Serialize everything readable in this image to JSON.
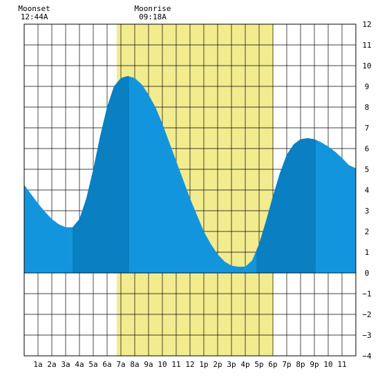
{
  "chart_data": {
    "type": "area",
    "title": "",
    "xlabel": "",
    "ylabel": "",
    "xlim": [
      0,
      24
    ],
    "ylim": [
      -4,
      12
    ],
    "yticks": [
      -4,
      -3,
      -2,
      -1,
      0,
      1,
      2,
      3,
      4,
      5,
      6,
      7,
      8,
      9,
      10,
      11,
      12
    ],
    "xtick_labels": [
      {
        "x": 1,
        "label": "1a"
      },
      {
        "x": 2,
        "label": "2a"
      },
      {
        "x": 3,
        "label": "3a"
      },
      {
        "x": 4,
        "label": "4a"
      },
      {
        "x": 5,
        "label": "5a"
      },
      {
        "x": 6,
        "label": "6a"
      },
      {
        "x": 7,
        "label": "7a"
      },
      {
        "x": 8,
        "label": "8a"
      },
      {
        "x": 9,
        "label": "9a"
      },
      {
        "x": 10,
        "label": "10"
      },
      {
        "x": 11,
        "label": "11"
      },
      {
        "x": 12,
        "label": "12"
      },
      {
        "x": 13,
        "label": "1p"
      },
      {
        "x": 14,
        "label": "2p"
      },
      {
        "x": 15,
        "label": "3p"
      },
      {
        "x": 16,
        "label": "4p"
      },
      {
        "x": 17,
        "label": "5p"
      },
      {
        "x": 18,
        "label": "6p"
      },
      {
        "x": 19,
        "label": "7p"
      },
      {
        "x": 20,
        "label": "8p"
      },
      {
        "x": 21,
        "label": "9p"
      },
      {
        "x": 22,
        "label": "10"
      },
      {
        "x": 23,
        "label": "11"
      }
    ],
    "daylight": {
      "start": 6.7,
      "end": 18.0
    },
    "annotations": [
      {
        "title": "Moonset",
        "time": "12:44A",
        "x": 0.73
      },
      {
        "title": "Moonrise",
        "time": "09:18A",
        "x": 9.3
      }
    ],
    "tide_extremes": [
      {
        "x": 3.5,
        "y": 2.2
      },
      {
        "x": 7.6,
        "y": 9.5
      },
      {
        "x": 16.8,
        "y": 0.3
      },
      {
        "x": 21.1,
        "y": 6.5
      }
    ],
    "series": [
      {
        "x": [
          0,
          0.5,
          1,
          1.5,
          2,
          2.5,
          3,
          3.5,
          4,
          4.5,
          5,
          5.5,
          6,
          6.5,
          7,
          7.5,
          8,
          8.5,
          9,
          9.5,
          10,
          10.5,
          11,
          11.5,
          12,
          12.5,
          13,
          13.5,
          14,
          14.5,
          15,
          15.5,
          16,
          16.5,
          17,
          17.5,
          18,
          18.5,
          19,
          19.5,
          20,
          20.5,
          21,
          21.5,
          22,
          22.5,
          23,
          23.5,
          24
        ],
        "y": [
          4.25,
          3.8,
          3.35,
          2.95,
          2.6,
          2.35,
          2.2,
          2.2,
          2.6,
          3.6,
          5.0,
          6.6,
          8.0,
          9.0,
          9.4,
          9.5,
          9.4,
          9.1,
          8.6,
          8.0,
          7.2,
          6.3,
          5.4,
          4.5,
          3.6,
          2.8,
          2.0,
          1.4,
          0.9,
          0.55,
          0.35,
          0.3,
          0.3,
          0.6,
          1.4,
          2.5,
          3.7,
          4.8,
          5.7,
          6.2,
          6.45,
          6.5,
          6.45,
          6.3,
          6.1,
          5.85,
          5.55,
          5.2,
          5.05
        ]
      }
    ],
    "colors": {
      "daylight": "#f2ec8f",
      "tide": "#1395dd",
      "tide_dark": "#0a7fc1",
      "grid": "#000000"
    },
    "dark_intervals": [
      [
        3.5,
        7.6
      ],
      [
        16.8,
        21.1
      ]
    ]
  }
}
